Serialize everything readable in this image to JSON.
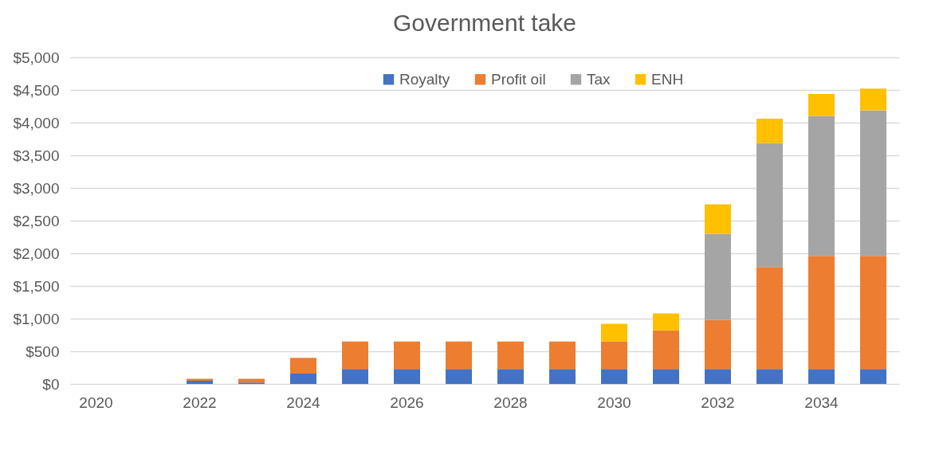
{
  "chart_data": {
    "type": "bar",
    "title": "Government take",
    "stacked": true,
    "grid": "y",
    "legend": "top",
    "categories": [
      "2020",
      null,
      "2022",
      null,
      "2024",
      null,
      "2026",
      null,
      "2028",
      null,
      "2030",
      null,
      "2032",
      null,
      "2034",
      null
    ],
    "ylim": [
      0,
      5000
    ],
    "yticks": [
      {
        "value": 0,
        "label": "$0"
      },
      {
        "value": 500,
        "label": "$500"
      },
      {
        "value": 1000,
        "label": "$1,000"
      },
      {
        "value": 1500,
        "label": "$1,500"
      },
      {
        "value": 2000,
        "label": "$2,000"
      },
      {
        "value": 2500,
        "label": "$2,500"
      },
      {
        "value": 3000,
        "label": "$3,000"
      },
      {
        "value": 3500,
        "label": "$3,500"
      },
      {
        "value": 4000,
        "label": "$4,000"
      },
      {
        "value": 4500,
        "label": "$4,500"
      },
      {
        "value": 5000,
        "label": "$5,000"
      }
    ],
    "series": [
      {
        "name": "Royalty",
        "color": "#4472c4",
        "values": [
          0,
          0,
          50,
          20,
          160,
          230,
          230,
          230,
          230,
          230,
          230,
          230,
          230,
          230,
          230,
          230
        ]
      },
      {
        "name": "Profit oil",
        "color": "#ed7d31",
        "values": [
          0,
          0,
          30,
          60,
          240,
          420,
          420,
          420,
          420,
          420,
          420,
          590,
          750,
          1560,
          1730,
          1730
        ]
      },
      {
        "name": "Tax",
        "color": "#a5a5a5",
        "values": [
          0,
          0,
          0,
          0,
          0,
          0,
          0,
          0,
          0,
          0,
          0,
          0,
          1320,
          1900,
          2140,
          2230
        ]
      },
      {
        "name": "ENH",
        "color": "#ffc000",
        "values": [
          0,
          0,
          0,
          0,
          0,
          0,
          0,
          0,
          0,
          0,
          270,
          260,
          450,
          370,
          340,
          330
        ]
      }
    ]
  }
}
